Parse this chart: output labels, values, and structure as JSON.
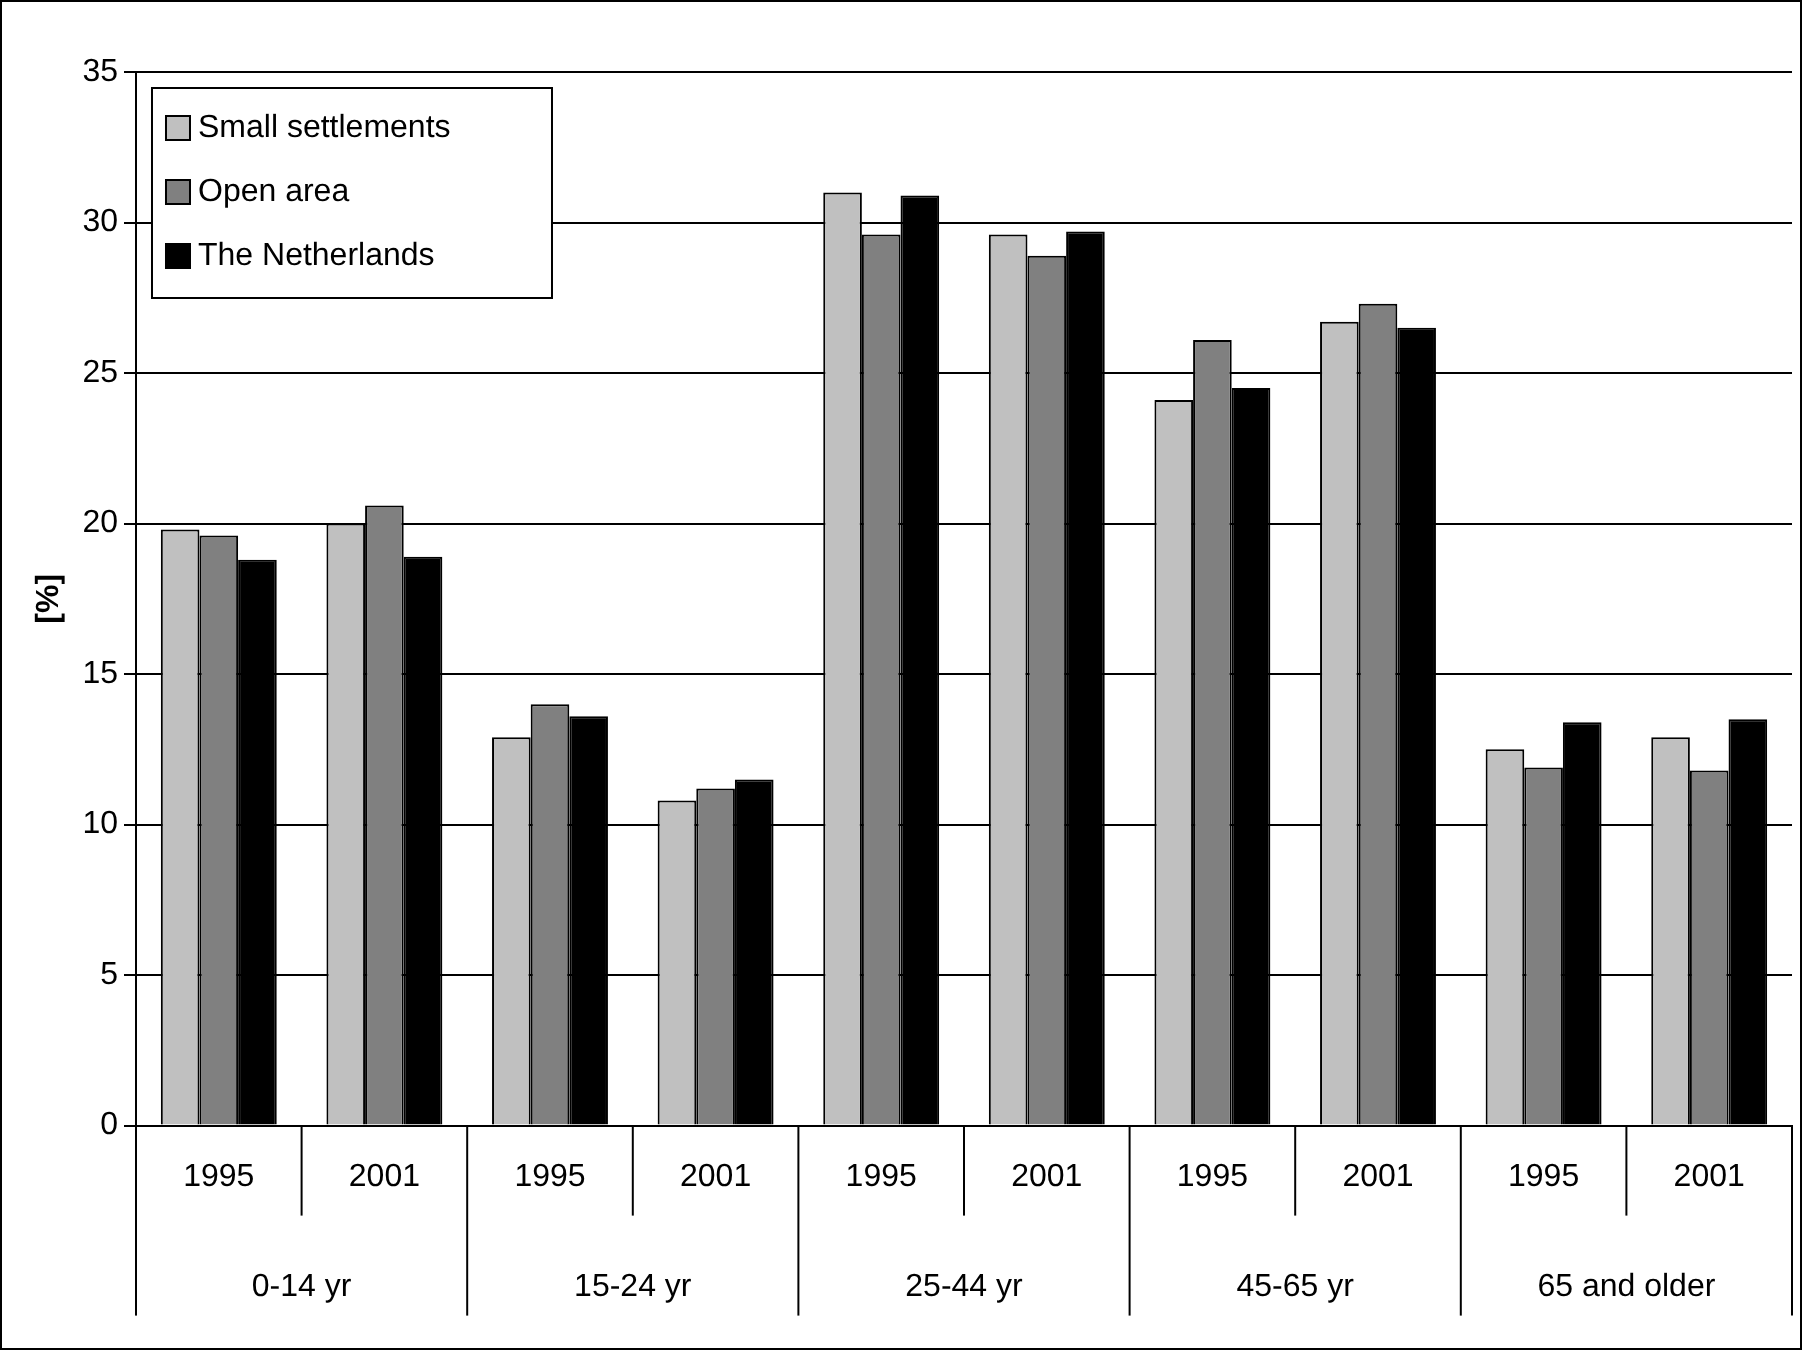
{
  "chart_data": {
    "type": "bar",
    "ylabel": "[%]",
    "categories": [
      "1995",
      "2001",
      "1995",
      "2001",
      "1995",
      "2001",
      "1995",
      "2001",
      "1995",
      "2001"
    ],
    "annotations": [
      "0-14 yr",
      "15-24 yr",
      "25-44 yr",
      "45-65 yr",
      "65 and older"
    ],
    "series": [
      {
        "name": "Small settlements",
        "color": "#c0c0c0",
        "values": [
          19.8,
          20.0,
          12.9,
          10.8,
          31.0,
          29.6,
          24.1,
          26.7,
          12.5,
          12.9
        ]
      },
      {
        "name": "Open area",
        "color": "#808080",
        "values": [
          19.6,
          20.6,
          14.0,
          11.2,
          29.6,
          28.9,
          26.1,
          27.3,
          11.9,
          11.8
        ]
      },
      {
        "name": "The Netherlands",
        "color": "#000000",
        "values": [
          18.8,
          18.9,
          13.6,
          11.5,
          30.9,
          29.7,
          24.5,
          26.5,
          13.4,
          13.5
        ]
      }
    ],
    "ylim": [
      0,
      35
    ],
    "yticks": [
      0,
      5,
      10,
      15,
      20,
      25,
      30,
      35
    ],
    "grid": "y",
    "legend": "top left"
  }
}
